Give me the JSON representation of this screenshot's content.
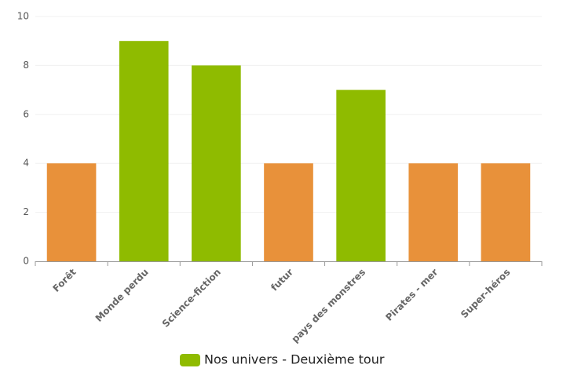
{
  "chart_data": {
    "type": "bar",
    "categories": [
      "Forêt",
      "Monde perdu",
      "Science-fiction",
      "futur",
      "pays des monstres",
      "Pirates - mer",
      "Super-héros"
    ],
    "series": [
      {
        "name": "Nos univers - Deuxième tour",
        "color": "#8fbb00",
        "values": [
          4,
          9,
          8,
          4,
          7,
          4,
          4
        ],
        "point_colors": [
          "#e8913a",
          "#8fbb00",
          "#8fbb00",
          "#e8913a",
          "#8fbb00",
          "#e8913a",
          "#e8913a"
        ]
      }
    ],
    "ylim": [
      0,
      10
    ],
    "yticks": [
      0,
      2,
      4,
      6,
      8,
      10
    ],
    "grid": true,
    "legend": "bottom"
  }
}
